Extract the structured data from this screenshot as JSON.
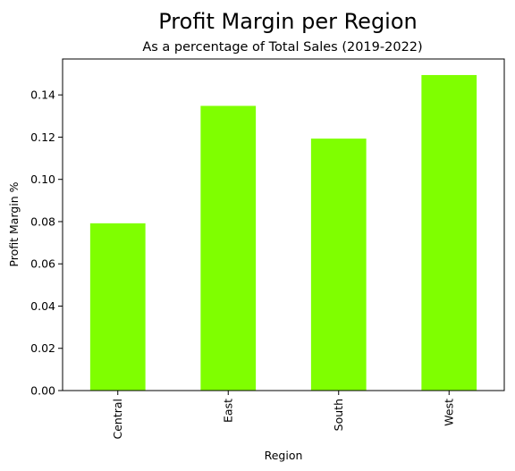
{
  "chart_data": {
    "type": "bar",
    "title": "Profit Margin per Region",
    "subtitle": "As a percentage of Total Sales (2019-2022)",
    "xlabel": "Region",
    "ylabel": "Profit Margin %",
    "categories": [
      "Central",
      "East",
      "South",
      "West"
    ],
    "values": [
      0.0792,
      0.1348,
      0.1193,
      0.1494
    ],
    "ylim": [
      0,
      0.157
    ],
    "yticks": [
      0.0,
      0.02,
      0.04,
      0.06,
      0.08,
      0.1,
      0.12,
      0.14
    ],
    "ytick_labels": [
      "0.00",
      "0.02",
      "0.04",
      "0.06",
      "0.08",
      "0.10",
      "0.12",
      "0.14"
    ],
    "bar_color": "#7FFF00",
    "grid": false,
    "legend": "none",
    "x_tick_rotation": "vertical"
  }
}
